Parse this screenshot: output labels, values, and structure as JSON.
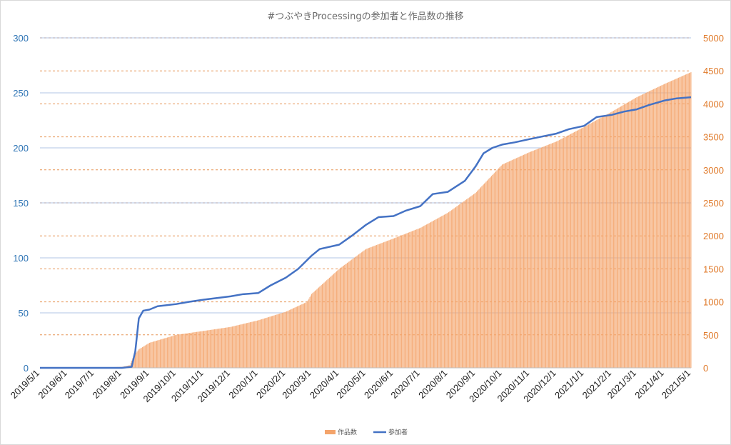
{
  "chart_data": {
    "type": "bar+line",
    "title": "#つぶやきProcessingの参加者と作品数の推移",
    "x_ticks": [
      "2019/5/1",
      "2019/6/1",
      "2019/7/1",
      "2019/8/1",
      "2019/9/1",
      "2019/10/1",
      "2019/11/1",
      "2019/12/1",
      "2020/1/1",
      "2020/2/1",
      "2020/3/1",
      "2020/4/1",
      "2020/5/1",
      "2020/6/1",
      "2020/7/1",
      "2020/8/1",
      "2020/9/1",
      "2020/10/1",
      "2020/11/1",
      "2020/12/1",
      "2021/1/1",
      "2021/2/1",
      "2021/3/1",
      "2021/4/1",
      "2021/5/1"
    ],
    "y_left": {
      "ylim": [
        0,
        300
      ],
      "ticks": [
        0,
        50,
        100,
        150,
        200,
        250,
        300
      ]
    },
    "y_right": {
      "ylim": [
        0,
        5000
      ],
      "ticks": [
        0,
        500,
        1000,
        1500,
        2000,
        2500,
        3000,
        3500,
        4000,
        4500,
        5000
      ]
    },
    "legend_position": "bottom",
    "colors": {
      "works": "#f4a46b",
      "participants": "#4472c4",
      "left_axis": "#2e74b5",
      "right_axis": "#e07a2a"
    },
    "series": [
      {
        "name": "作品数",
        "type": "bar",
        "axis": "right",
        "points": [
          [
            "2019/5/1",
            0
          ],
          [
            "2019/7/1",
            0
          ],
          [
            "2019/8/1",
            15
          ],
          [
            "2019/8/10",
            40
          ],
          [
            "2019/8/14",
            180
          ],
          [
            "2019/8/20",
            280
          ],
          [
            "2019/9/1",
            380
          ],
          [
            "2019/10/1",
            500
          ],
          [
            "2019/11/1",
            560
          ],
          [
            "2019/12/1",
            620
          ],
          [
            "2020/1/1",
            720
          ],
          [
            "2020/2/1",
            850
          ],
          [
            "2020/2/25",
            1000
          ],
          [
            "2020/3/1",
            1120
          ],
          [
            "2020/4/1",
            1500
          ],
          [
            "2020/5/1",
            1800
          ],
          [
            "2020/6/1",
            1960
          ],
          [
            "2020/7/1",
            2120
          ],
          [
            "2020/8/1",
            2350
          ],
          [
            "2020/9/1",
            2650
          ],
          [
            "2020/10/1",
            3080
          ],
          [
            "2020/11/1",
            3270
          ],
          [
            "2020/12/1",
            3430
          ],
          [
            "2021/1/1",
            3650
          ],
          [
            "2021/2/1",
            3880
          ],
          [
            "2021/3/1",
            4100
          ],
          [
            "2021/4/1",
            4300
          ],
          [
            "2021/5/1",
            4480
          ]
        ]
      },
      {
        "name": "参加者",
        "type": "line",
        "axis": "left",
        "points": [
          [
            "2019/5/1",
            0
          ],
          [
            "2019/8/1",
            0
          ],
          [
            "2019/8/12",
            1
          ],
          [
            "2019/8/16",
            15
          ],
          [
            "2019/8/20",
            45
          ],
          [
            "2019/8/25",
            52
          ],
          [
            "2019/9/1",
            53
          ],
          [
            "2019/9/10",
            56
          ],
          [
            "2019/10/1",
            58
          ],
          [
            "2019/10/15",
            60
          ],
          [
            "2019/11/1",
            62
          ],
          [
            "2019/12/1",
            65
          ],
          [
            "2019/12/15",
            67
          ],
          [
            "2020/1/1",
            68
          ],
          [
            "2020/1/15",
            75
          ],
          [
            "2020/2/1",
            82
          ],
          [
            "2020/2/15",
            90
          ],
          [
            "2020/3/1",
            102
          ],
          [
            "2020/3/10",
            108
          ],
          [
            "2020/4/1",
            112
          ],
          [
            "2020/4/15",
            120
          ],
          [
            "2020/5/1",
            130
          ],
          [
            "2020/5/15",
            137
          ],
          [
            "2020/6/1",
            138
          ],
          [
            "2020/6/15",
            143
          ],
          [
            "2020/7/1",
            147
          ],
          [
            "2020/7/15",
            158
          ],
          [
            "2020/8/1",
            160
          ],
          [
            "2020/8/20",
            170
          ],
          [
            "2020/9/1",
            183
          ],
          [
            "2020/9/10",
            195
          ],
          [
            "2020/9/20",
            200
          ],
          [
            "2020/10/1",
            203
          ],
          [
            "2020/10/15",
            205
          ],
          [
            "2020/11/1",
            208
          ],
          [
            "2020/12/1",
            213
          ],
          [
            "2020/12/15",
            217
          ],
          [
            "2021/1/1",
            220
          ],
          [
            "2021/1/15",
            228
          ],
          [
            "2021/2/1",
            230
          ],
          [
            "2021/2/15",
            233
          ],
          [
            "2021/3/1",
            235
          ],
          [
            "2021/3/15",
            239
          ],
          [
            "2021/4/1",
            243
          ],
          [
            "2021/4/15",
            245
          ],
          [
            "2021/5/1",
            246
          ]
        ]
      }
    ]
  }
}
